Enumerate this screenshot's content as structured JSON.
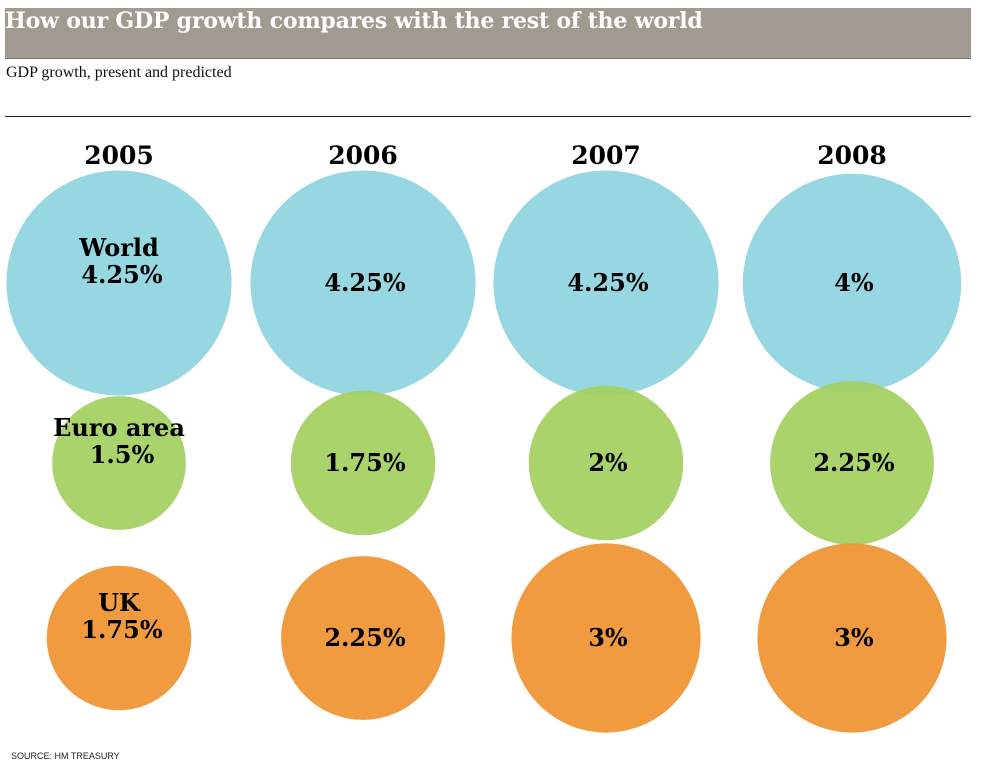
{
  "header": {
    "title": "How our GDP growth compares with the rest of the world",
    "subtitle": "GDP growth, present and predicted"
  },
  "footer": {
    "source": "SOURCE: HM TREASURY"
  },
  "colors": {
    "title_bar": "#a19a91",
    "World": "#8ed4de",
    "Euro area": "#a3cf5f",
    "UK": "#ef9230"
  },
  "chart_data": {
    "type": "bubble",
    "title": "How our GDP growth compares with the rest of the world",
    "subtitle": "GDP growth, present and predicted",
    "categories": [
      "2005",
      "2006",
      "2007",
      "2008"
    ],
    "series": [
      {
        "name": "World",
        "values": [
          4.25,
          4.25,
          4.25,
          4
        ],
        "labels": [
          "4.25%",
          "4.25%",
          "4.25%",
          "4%"
        ]
      },
      {
        "name": "Euro area",
        "values": [
          1.5,
          1.75,
          2,
          2.25
        ],
        "labels": [
          "1.5%",
          "1.75%",
          "2%",
          "2.25%"
        ]
      },
      {
        "name": "UK",
        "values": [
          1.75,
          2.25,
          3,
          3
        ],
        "labels": [
          "1.75%",
          "2.25%",
          "3%",
          "3%"
        ]
      }
    ],
    "unit": "%",
    "source": "SOURCE: HM TREASURY"
  }
}
